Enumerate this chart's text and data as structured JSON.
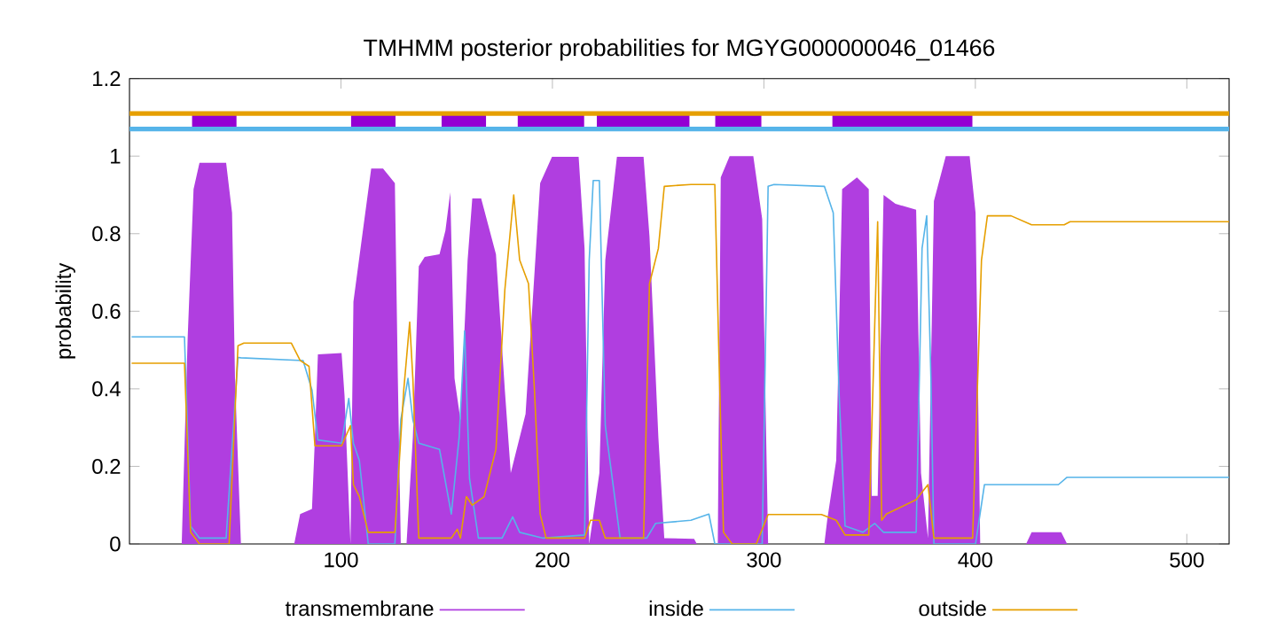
{
  "chart_data": {
    "type": "line",
    "title": "TMHMM posterior probabilities for MGYG000000046_01466",
    "ylabel": "probability",
    "xlim": [
      0,
      520
    ],
    "xticks": [
      100,
      200,
      300,
      400,
      500
    ],
    "ylim": [
      0,
      1.2
    ],
    "yticks": [
      0,
      0.2,
      0.4,
      0.6,
      0.8,
      1,
      1.2
    ],
    "legend": "bottom",
    "grid": false,
    "ref_lines": [
      {
        "axis": "y",
        "value": 1.11,
        "color": "#e69f00"
      },
      {
        "axis": "y",
        "value": 1.07,
        "color": "#56b4e9"
      }
    ],
    "series": [
      {
        "name": "transmembrane",
        "type": "area",
        "color": "#b03ee0",
        "x": [
          1,
          24.7,
          27.5,
          30.3,
          33.1,
          45.7,
          48.5,
          49.9,
          52.7,
          77.9,
          80.7,
          86.3,
          87.7,
          89.1,
          100.3,
          101.7,
          104.5,
          105.9,
          111.5,
          114.3,
          119.9,
          125.5,
          126.9,
          128.3,
          131,
          134,
          136.8,
          139.6,
          146.6,
          149.4,
          151.7,
          153.7,
          156.5,
          159.9,
          162.1,
          166.3,
          173.3,
          177.5,
          180.3,
          183.1,
          187.3,
          194.2,
          199.8,
          212.4,
          215.2,
          217.4,
          222.2,
          225,
          230.5,
          243.1,
          245.9,
          250.1,
          252.9,
          267,
          268.3,
          278.2,
          279.6,
          283.8,
          295,
          299.2,
          302,
          328.6,
          330,
          334.2,
          337,
          344,
          349.6,
          351,
          353.8,
          356.6,
          362.2,
          372,
          374.3,
          377.6,
          380.4,
          386,
          397.3,
          400.1,
          402.3,
          424,
          426.6,
          440.6,
          443.4,
          520
        ],
        "values": [
          0,
          0,
          0.53,
          0.915,
          0.983,
          0.983,
          0.854,
          0.427,
          0,
          0,
          0.077,
          0.09,
          0.275,
          0.489,
          0.492,
          0.382,
          0,
          0.625,
          0.854,
          0.968,
          0.968,
          0.93,
          0.427,
          0,
          0,
          0.275,
          0.716,
          0.74,
          0.747,
          0.808,
          0.907,
          0.427,
          0.32,
          0.732,
          0.891,
          0.891,
          0.747,
          0.397,
          0.183,
          0.244,
          0.335,
          0.93,
          0.998,
          0.998,
          0.762,
          0,
          0.183,
          0.732,
          0.998,
          0.998,
          0.793,
          0.275,
          0.015,
          0.013,
          0,
          0,
          0.945,
          1.0,
          1.0,
          0.838,
          0,
          0,
          0.064,
          0.215,
          0.915,
          0.945,
          0.915,
          0.124,
          0.124,
          0.9,
          0.877,
          0.862,
          0.183,
          0.015,
          0.884,
          1.0,
          1.0,
          0.854,
          0,
          0,
          0.03,
          0.03,
          0,
          0
        ]
      },
      {
        "name": "inside",
        "type": "line",
        "color": "#56b4e9",
        "x": [
          1,
          26,
          28.9,
          33.1,
          45.7,
          51.3,
          52.7,
          82.1,
          86.3,
          89.1,
          100.3,
          103.7,
          105.9,
          108.7,
          112.9,
          125.5,
          128.3,
          131.7,
          134,
          136.8,
          146.6,
          152.2,
          155.9,
          158.5,
          160.8,
          165,
          176.2,
          181.2,
          184.5,
          195.6,
          215.2,
          217.4,
          219.3,
          222.2,
          225,
          232,
          244.6,
          248.8,
          265.5,
          274,
          276.8,
          299.2,
          302,
          304.8,
          328.6,
          332.8,
          335.6,
          338.4,
          346.8,
          352.4,
          356.6,
          372,
          374.8,
          377,
          379,
          380.4,
          400.1,
          404.3,
          439.3,
          443.4,
          520
        ],
        "values": [
          0.534,
          0.534,
          0.046,
          0.015,
          0.015,
          0.481,
          0.48,
          0.473,
          0.397,
          0.268,
          0.26,
          0.375,
          0.26,
          0.215,
          0,
          0,
          0.32,
          0.427,
          0.32,
          0.26,
          0.244,
          0.077,
          0.275,
          0.549,
          0.168,
          0.015,
          0.015,
          0.07,
          0.03,
          0.015,
          0.023,
          0.732,
          0.937,
          0.937,
          0.305,
          0.015,
          0.015,
          0.053,
          0.061,
          0.077,
          0,
          0,
          0.922,
          0.927,
          0.922,
          0.854,
          0.382,
          0.046,
          0.03,
          0.053,
          0.03,
          0.03,
          0.762,
          0.846,
          0.427,
          0,
          0,
          0.153,
          0.153,
          0.172,
          0.172
        ]
      },
      {
        "name": "outside",
        "type": "line",
        "color": "#e69f00",
        "x": [
          1,
          26,
          28.9,
          33.1,
          47.1,
          51.3,
          54.1,
          76.5,
          80.7,
          84.9,
          87.7,
          100.3,
          104.5,
          105.9,
          108.7,
          112.9,
          125.5,
          129.7,
          132.5,
          134,
          136.8,
          152.2,
          155,
          156.5,
          159.3,
          162.1,
          167.7,
          173.3,
          177.5,
          181.7,
          184.5,
          188.7,
          191.5,
          194.2,
          197,
          215.2,
          218,
          222.2,
          225,
          243.1,
          245.9,
          250.1,
          252.9,
          265.5,
          276.8,
          279,
          280.9,
          285,
          296.4,
          302,
          327.2,
          334.2,
          338.4,
          349.6,
          353.8,
          355.7,
          357.9,
          372,
          377.6,
          380.4,
          398.7,
          402.9,
          405.7,
          416.9,
          426.6,
          442,
          444.8,
          520
        ],
        "values": [
          0.466,
          0.466,
          0.03,
          0,
          0,
          0.511,
          0.518,
          0.518,
          0.473,
          0.458,
          0.253,
          0.253,
          0.305,
          0.153,
          0.122,
          0.03,
          0.03,
          0.397,
          0.572,
          0.427,
          0.015,
          0.015,
          0.038,
          0.015,
          0.122,
          0.1,
          0.122,
          0.244,
          0.655,
          0.9,
          0.732,
          0.671,
          0.397,
          0.077,
          0.015,
          0.015,
          0.061,
          0.061,
          0.015,
          0.015,
          0.671,
          0.762,
          0.922,
          0.927,
          0.927,
          0.427,
          0.03,
          0,
          0,
          0.076,
          0.076,
          0.061,
          0.023,
          0.023,
          0.831,
          0.061,
          0.077,
          0.114,
          0.153,
          0.015,
          0.015,
          0.732,
          0.846,
          0.846,
          0.823,
          0.823,
          0.831,
          0.831
        ]
      },
      {
        "color": "#9400d3",
        "x": [
          29.6,
          50.6,
          null,
          104.8,
          125.8,
          null,
          147.6,
          168.6,
          null,
          183.6,
          215,
          null,
          221,
          264.8,
          null,
          277,
          298.8,
          null,
          332.4,
          398.6
        ],
        "values": [
          1.09,
          1.09,
          null,
          1.09,
          1.09,
          null,
          1.09,
          1.09,
          null,
          1.09,
          1.09,
          null,
          1.09,
          1.09,
          null,
          1.09,
          1.09,
          null,
          1.09,
          1.09
        ]
      }
    ]
  }
}
